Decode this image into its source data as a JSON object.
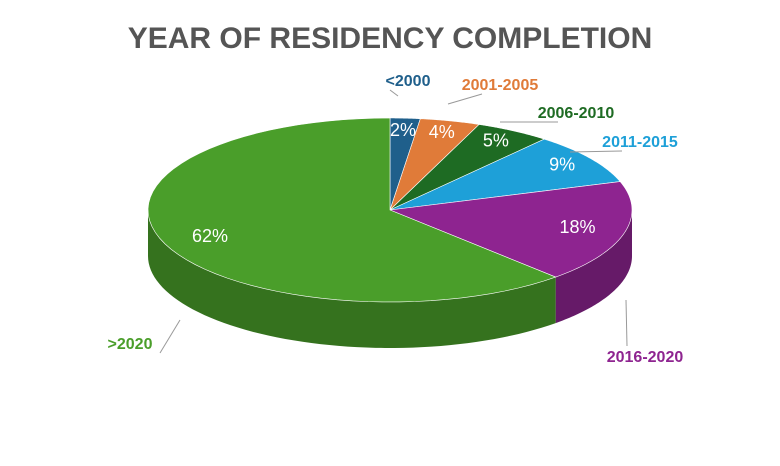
{
  "chart_data": {
    "type": "pie",
    "title": "YEAR OF RESIDENCY COMPLETION",
    "categories": [
      "<2000",
      "2001-2005",
      "2006-2010",
      "2011-2015",
      "2016-2020",
      ">2020"
    ],
    "values": [
      2,
      4,
      5,
      9,
      18,
      62
    ],
    "value_labels": [
      "2%",
      "4%",
      "5%",
      "9%",
      "18%",
      "62%"
    ],
    "colors": [
      "#1f5f8b",
      "#e07b39",
      "#1e6b23",
      "#1ea0d8",
      "#8e2490",
      "#4a9e2a"
    ]
  }
}
